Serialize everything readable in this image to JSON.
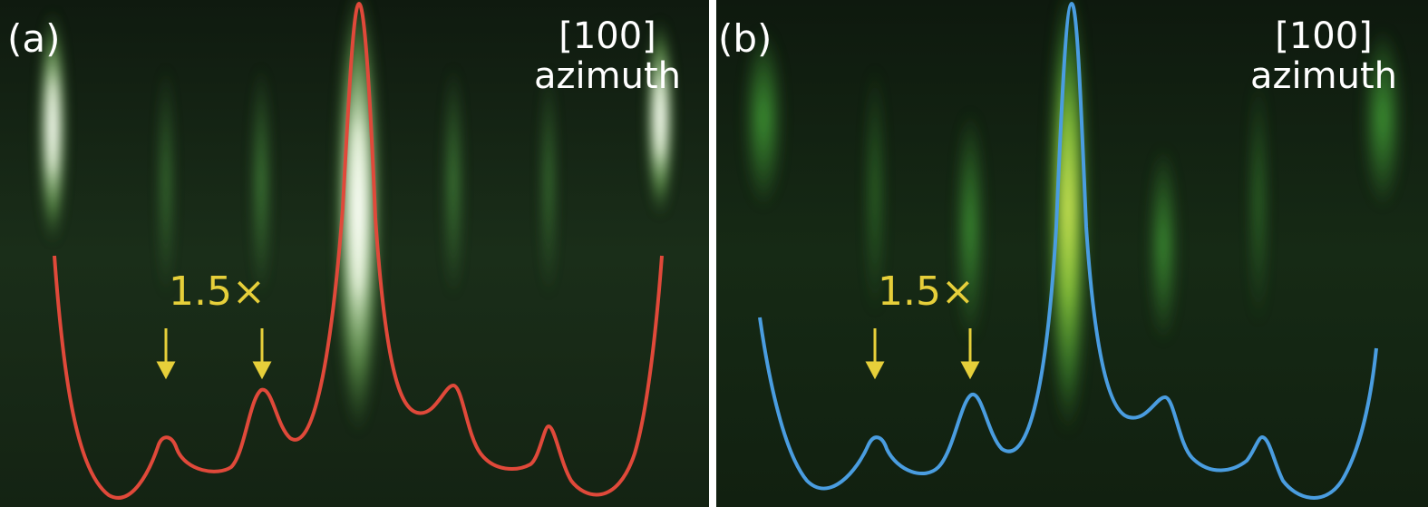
{
  "panels": [
    {
      "label": "(a)",
      "direction": "[100]",
      "azimuth": "azimuth",
      "annotation": "1.5×",
      "profile_color": "#e0493a",
      "arrow_color": "#e6cf3a"
    },
    {
      "label": "(b)",
      "direction": "[100]",
      "azimuth": "azimuth",
      "annotation": "1.5×",
      "profile_color": "#4a9de0",
      "arrow_color": "#e6cf3a"
    }
  ]
}
